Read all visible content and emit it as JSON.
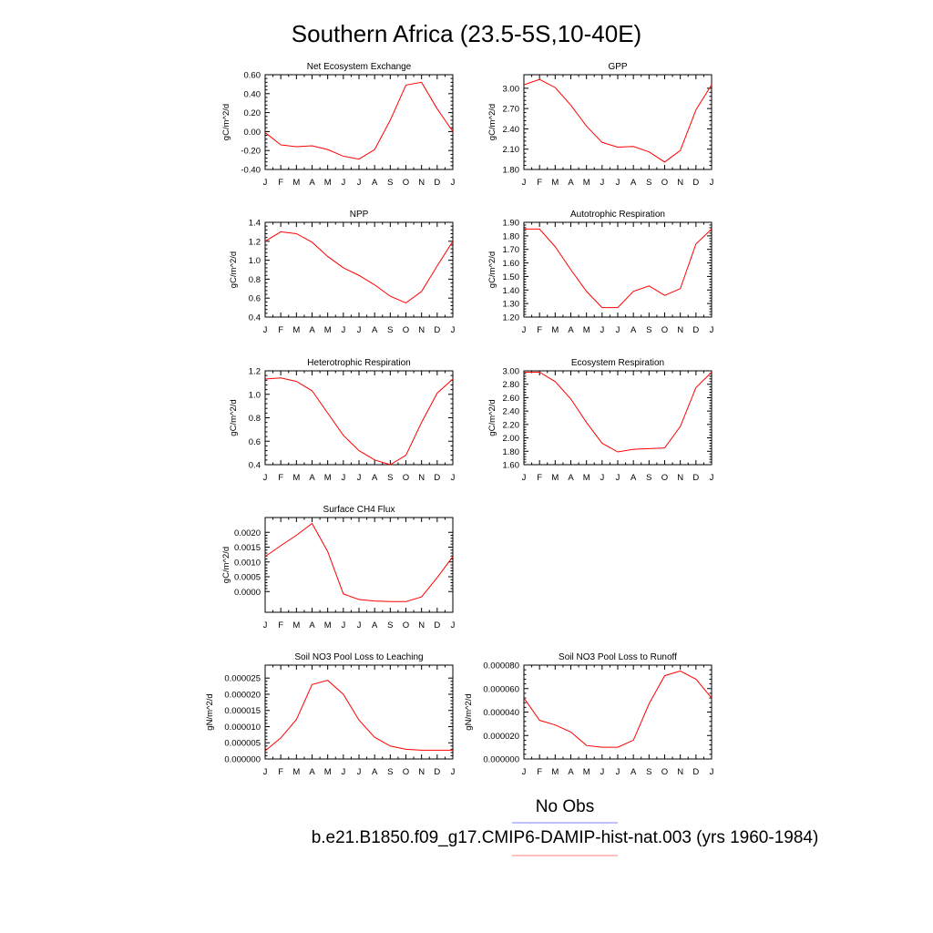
{
  "page": {
    "title": "Southern Africa (23.5-5S,10-40E)"
  },
  "legend": {
    "items": [
      {
        "label": "No Obs",
        "color": "#8080ff"
      },
      {
        "label": "b.e21.B1850.f09_g17.CMIP6-DAMIP-hist-nat.003 (yrs 1960-1984)",
        "color": "#ff8080"
      }
    ]
  },
  "chart_data": [
    {
      "type": "line",
      "title": "Net Ecosystem Exchange",
      "ylabel": "gC/m^2/d",
      "categories": [
        "J",
        "F",
        "M",
        "A",
        "M",
        "J",
        "J",
        "A",
        "S",
        "O",
        "N",
        "D",
        "J"
      ],
      "ylim": [
        -0.4,
        0.6
      ],
      "yticks": [
        "-0.40",
        "-0.20",
        "0.00",
        "0.20",
        "0.40",
        "0.60"
      ],
      "yticks_values": [
        -0.4,
        -0.2,
        0.0,
        0.2,
        0.4,
        0.6
      ],
      "series": [
        {
          "color": "#ff0000",
          "values": [
            -0.01,
            -0.14,
            -0.16,
            -0.15,
            -0.19,
            -0.26,
            -0.29,
            -0.19,
            0.12,
            0.49,
            0.52,
            0.24,
            0.0
          ]
        }
      ]
    },
    {
      "type": "line",
      "title": "GPP",
      "ylabel": "gC/m^2/d",
      "categories": [
        "J",
        "F",
        "M",
        "A",
        "M",
        "J",
        "J",
        "A",
        "S",
        "O",
        "N",
        "D",
        "J"
      ],
      "ylim": [
        1.8,
        3.2
      ],
      "yticks": [
        "1.80",
        "2.10",
        "2.40",
        "2.70",
        "3.00"
      ],
      "yticks_values": [
        1.8,
        2.1,
        2.4,
        2.7,
        3.0
      ],
      "series": [
        {
          "color": "#ff0000",
          "values": [
            3.05,
            3.13,
            3.01,
            2.75,
            2.44,
            2.2,
            2.13,
            2.14,
            2.06,
            1.91,
            2.08,
            2.68,
            3.05
          ]
        }
      ]
    },
    {
      "type": "line",
      "title": "NPP",
      "ylabel": "gC/m^2/d",
      "categories": [
        "J",
        "F",
        "M",
        "A",
        "M",
        "J",
        "J",
        "A",
        "S",
        "O",
        "N",
        "D",
        "J"
      ],
      "ylim": [
        0.4,
        1.4
      ],
      "yticks": [
        "0.4",
        "0.6",
        "0.8",
        "1.0",
        "1.2",
        "1.4"
      ],
      "yticks_values": [
        0.4,
        0.6,
        0.8,
        1.0,
        1.2,
        1.4
      ],
      "series": [
        {
          "color": "#ff0000",
          "values": [
            1.2,
            1.3,
            1.28,
            1.19,
            1.04,
            0.92,
            0.84,
            0.74,
            0.62,
            0.55,
            0.67,
            0.94,
            1.2
          ]
        }
      ]
    },
    {
      "type": "line",
      "title": "Autotrophic Respiration",
      "ylabel": "gC/m^2/d",
      "categories": [
        "J",
        "F",
        "M",
        "A",
        "M",
        "J",
        "J",
        "A",
        "S",
        "O",
        "N",
        "D",
        "J"
      ],
      "ylim": [
        1.2,
        1.9
      ],
      "yticks": [
        "1.20",
        "1.30",
        "1.40",
        "1.50",
        "1.60",
        "1.70",
        "1.80",
        "1.90"
      ],
      "yticks_values": [
        1.2,
        1.3,
        1.4,
        1.5,
        1.6,
        1.7,
        1.8,
        1.9
      ],
      "series": [
        {
          "color": "#ff0000",
          "values": [
            1.85,
            1.85,
            1.72,
            1.55,
            1.39,
            1.27,
            1.27,
            1.39,
            1.43,
            1.36,
            1.41,
            1.74,
            1.85
          ]
        }
      ]
    },
    {
      "type": "line",
      "title": "Heterotrophic Respiration",
      "ylabel": "gC/m^2/d",
      "categories": [
        "J",
        "F",
        "M",
        "A",
        "M",
        "J",
        "J",
        "A",
        "S",
        "O",
        "N",
        "D",
        "J"
      ],
      "ylim": [
        0.4,
        1.2
      ],
      "yticks": [
        "0.4",
        "0.6",
        "0.8",
        "1.0",
        "1.2"
      ],
      "yticks_values": [
        0.4,
        0.6,
        0.8,
        1.0,
        1.2
      ],
      "series": [
        {
          "color": "#ff0000",
          "values": [
            1.13,
            1.14,
            1.11,
            1.03,
            0.84,
            0.65,
            0.52,
            0.44,
            0.4,
            0.48,
            0.76,
            1.01,
            1.13
          ]
        }
      ]
    },
    {
      "type": "line",
      "title": "Ecosystem Respiration",
      "ylabel": "gC/m^2/d",
      "categories": [
        "J",
        "F",
        "M",
        "A",
        "M",
        "J",
        "J",
        "A",
        "S",
        "O",
        "N",
        "D",
        "J"
      ],
      "ylim": [
        1.6,
        3.0
      ],
      "yticks": [
        "1.60",
        "1.80",
        "2.00",
        "2.20",
        "2.40",
        "2.60",
        "2.80",
        "3.00"
      ],
      "yticks_values": [
        1.6,
        1.8,
        2.0,
        2.2,
        2.4,
        2.6,
        2.8,
        3.0
      ],
      "series": [
        {
          "color": "#ff0000",
          "values": [
            2.98,
            2.98,
            2.84,
            2.58,
            2.23,
            1.92,
            1.79,
            1.83,
            1.84,
            1.85,
            2.17,
            2.75,
            2.98
          ]
        }
      ]
    },
    {
      "type": "line",
      "title": "Surface CH4 Flux",
      "ylabel": "gC/m^2/d",
      "categories": [
        "J",
        "F",
        "M",
        "A",
        "M",
        "J",
        "J",
        "A",
        "S",
        "O",
        "N",
        "D",
        "J"
      ],
      "ylim": [
        -0.0007,
        0.0025
      ],
      "yticks": [
        "0.0000",
        "0.0005",
        "0.0010",
        "0.0015",
        "0.0020"
      ],
      "yticks_values": [
        0.0,
        0.0005,
        0.001,
        0.0015,
        0.002
      ],
      "series": [
        {
          "color": "#ff0000",
          "values": [
            0.00118,
            0.00155,
            0.0019,
            0.0023,
            0.00135,
            -8e-05,
            -0.00027,
            -0.00032,
            -0.00034,
            -0.00034,
            -0.00018,
            0.00047,
            0.00118
          ]
        }
      ]
    },
    {
      "type": "line",
      "title": "Soil NO3 Pool Loss to Leaching",
      "ylabel": "gN/m^2/d",
      "categories": [
        "J",
        "F",
        "M",
        "A",
        "M",
        "J",
        "J",
        "A",
        "S",
        "O",
        "N",
        "D",
        "J"
      ],
      "ylim": [
        0.0,
        2.9e-05
      ],
      "yticks": [
        "0.000000",
        "0.000005",
        "0.000010",
        "0.000015",
        "0.000020",
        "0.000025"
      ],
      "yticks_values": [
        0.0,
        5e-06,
        1e-05,
        1.5e-05,
        2e-05,
        2.5e-05
      ],
      "series": [
        {
          "color": "#ff0000",
          "values": [
            2.5e-06,
            6.5e-06,
            1.22e-05,
            2.3e-05,
            2.43e-05,
            2e-05,
            1.2e-05,
            6.7e-06,
            4e-06,
            3e-06,
            2.7e-06,
            2.7e-06,
            2.7e-06
          ]
        }
      ]
    },
    {
      "type": "line",
      "title": "Soil NO3 Pool Loss to Runoff",
      "ylabel": "gN/m^2/d",
      "categories": [
        "J",
        "F",
        "M",
        "A",
        "M",
        "J",
        "J",
        "A",
        "S",
        "O",
        "N",
        "D",
        "J"
      ],
      "ylim": [
        0.0,
        8e-05
      ],
      "yticks": [
        "0.000000",
        "0.000020",
        "0.000040",
        "0.000060",
        "0.000080"
      ],
      "yticks_values": [
        0.0,
        2e-05,
        4e-05,
        6e-05,
        8e-05
      ],
      "series": [
        {
          "color": "#ff0000",
          "values": [
            5.2e-05,
            3.3e-05,
            2.9e-05,
            2.3e-05,
            1.15e-05,
            1e-05,
            1e-05,
            1.6e-05,
            4.7e-05,
            7.1e-05,
            7.5e-05,
            6.8e-05,
            5.2e-05
          ]
        }
      ]
    }
  ]
}
